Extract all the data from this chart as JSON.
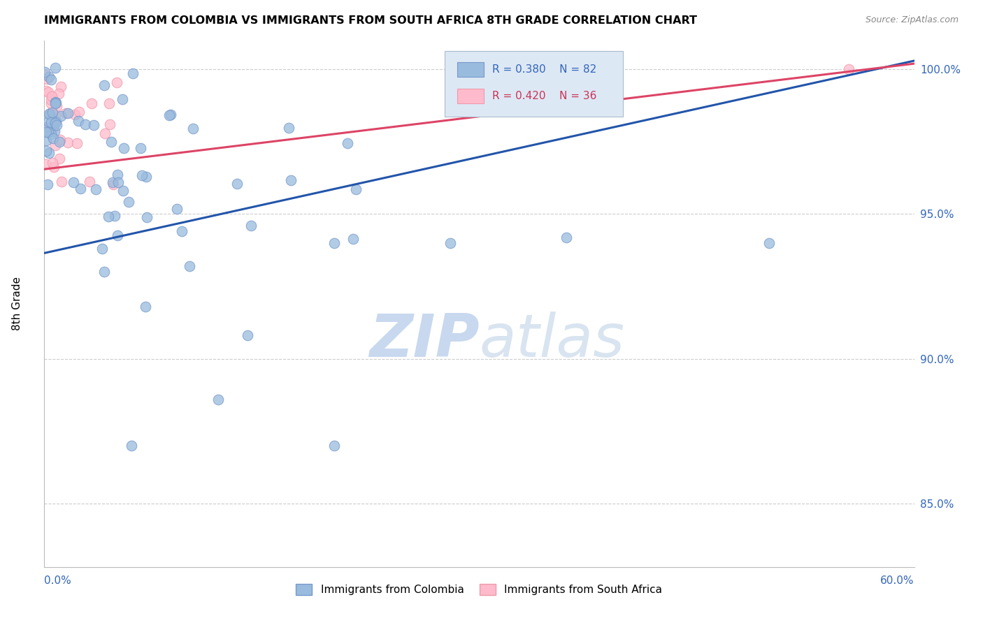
{
  "title": "IMMIGRANTS FROM COLOMBIA VS IMMIGRANTS FROM SOUTH AFRICA 8TH GRADE CORRELATION CHART",
  "source": "Source: ZipAtlas.com",
  "ylabel": "8th Grade",
  "series": [
    {
      "name": "Immigrants from Colombia",
      "color": "#99bbdd",
      "edge_color": "#7799cc",
      "R": 0.38,
      "N": 82
    },
    {
      "name": "Immigrants from South Africa",
      "color": "#ffbbcc",
      "edge_color": "#ee99aa",
      "R": 0.42,
      "N": 36
    }
  ],
  "right_yticks": [
    0.85,
    0.9,
    0.95,
    1.0
  ],
  "right_yticklabels": [
    "85.0%",
    "90.0%",
    "95.0%",
    "100.0%"
  ],
  "ylim": [
    0.828,
    1.01
  ],
  "xlim": [
    0.0,
    0.6
  ],
  "watermark_zip": "ZIP",
  "watermark_atlas": "atlas",
  "trend_blue_color": "#2255aa",
  "trend_pink_color": "#dd4466",
  "legend_box_color": "#dde8f5",
  "legend_R_blue": "R = 0.380",
  "legend_N_blue": "N = 82",
  "legend_R_pink": "R = 0.420",
  "legend_N_pink": "N = 36",
  "trend_blue_y0": 0.9365,
  "trend_blue_y1": 1.003,
  "trend_pink_y0": 0.9655,
  "trend_pink_y1": 1.002,
  "grid_color": "#cccccc",
  "title_fontsize": 11.5,
  "source_fontsize": 9
}
